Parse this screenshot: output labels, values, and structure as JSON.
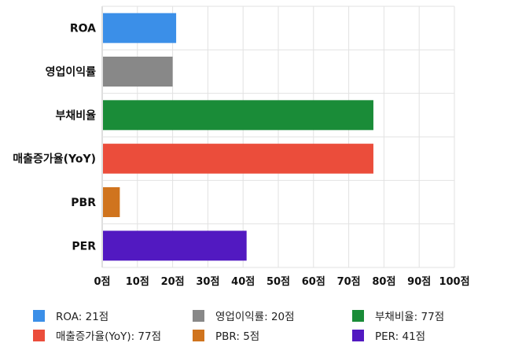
{
  "chart_data": {
    "type": "bar",
    "orientation": "horizontal",
    "categories": [
      "ROA",
      "영업이익률",
      "부채비율",
      "매출증가율(YoY)",
      "PBR",
      "PER"
    ],
    "values": [
      21,
      20,
      77,
      77,
      5,
      41
    ],
    "colors": [
      "#3b8fe8",
      "#888888",
      "#1a8c38",
      "#eb4d3b",
      "#d0741e",
      "#5219c1"
    ],
    "xlim": [
      0,
      100
    ],
    "x_ticks": [
      0,
      10,
      20,
      30,
      40,
      50,
      60,
      70,
      80,
      90,
      100
    ],
    "tick_suffix": "점",
    "grid": true,
    "legend_position": "bottom",
    "legend": [
      "ROA: 21점",
      "영업이익률: 20점",
      "부채비율: 77점",
      "매출증가율(YoY): 77점",
      "PBR: 5점",
      "PER: 41점"
    ]
  }
}
